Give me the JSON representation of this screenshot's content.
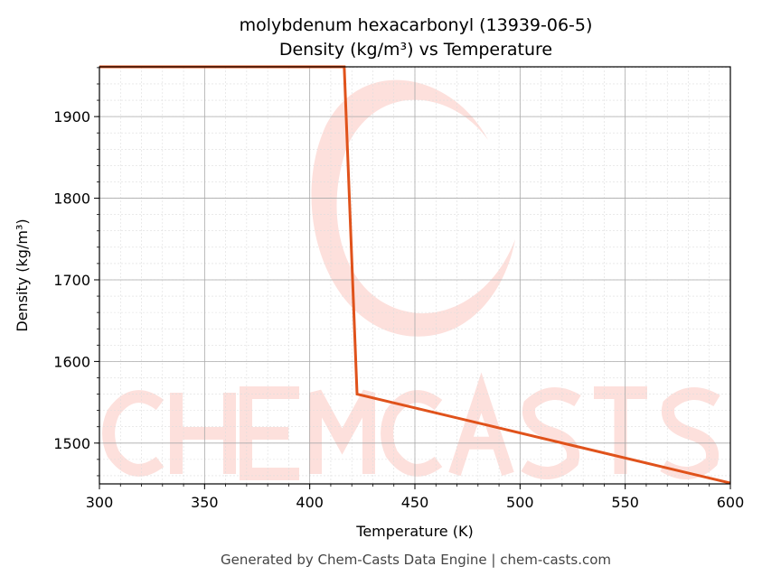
{
  "chart_data": {
    "type": "line",
    "title": "molybdenum hexacarbonyl (13939-06-5)",
    "subtitle": "Density (kg/m³) vs Temperature",
    "xlabel": "Temperature (K)",
    "ylabel": "Density (kg/m³)",
    "xlim": [
      300,
      600
    ],
    "ylim": [
      1450,
      1961
    ],
    "xticks": [
      300,
      350,
      400,
      450,
      500,
      550,
      600
    ],
    "yticks": [
      1500,
      1600,
      1700,
      1800,
      1900
    ],
    "grid": true,
    "line_color": "#e0521b",
    "series": [
      {
        "x": [
          300,
          416.4,
          422.5,
          600
        ],
        "y": [
          1961,
          1961,
          1560,
          1451
        ]
      }
    ],
    "watermark": "CHEMCASTS",
    "watermark_color": "#fde0dc",
    "footer": "Generated by Chem-Casts Data Engine | chem-casts.com"
  }
}
